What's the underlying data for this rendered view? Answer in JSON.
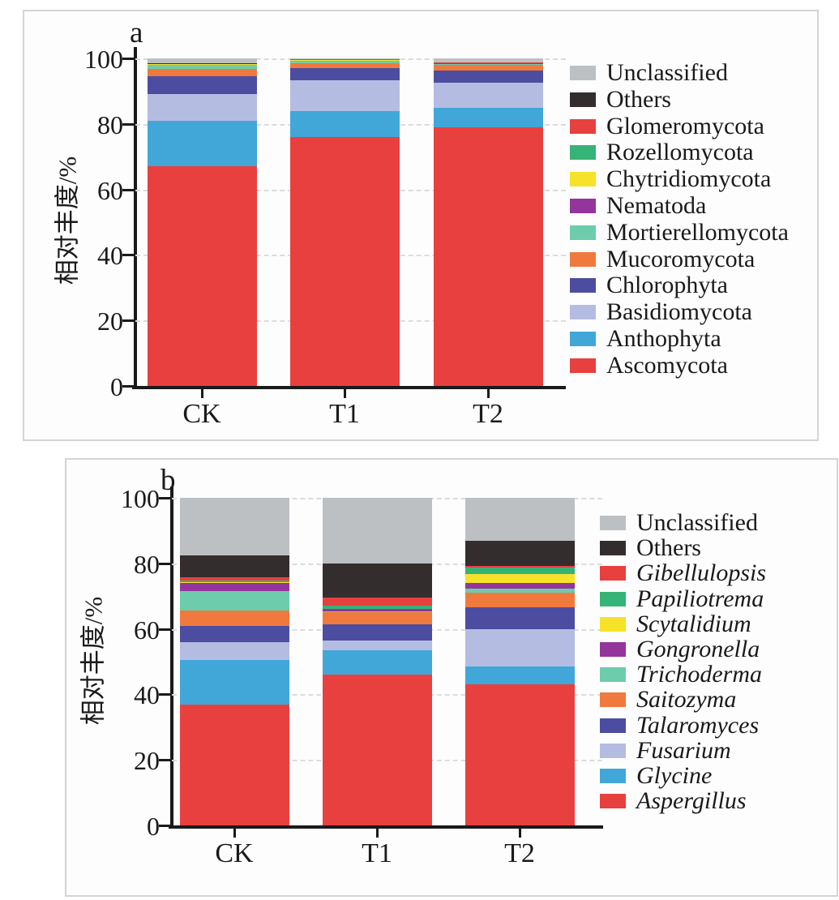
{
  "panels": {
    "a": {
      "label": "a",
      "y_axis_title": "相对丰度/%",
      "x_categories": [
        "CK",
        "T1",
        "T2"
      ],
      "y_tick_labels": [
        "0",
        "20",
        "40",
        "60",
        "80",
        "100"
      ]
    },
    "b": {
      "label": "b",
      "y_axis_title": "相对丰度/%",
      "x_categories": [
        "CK",
        "T1",
        "T2"
      ],
      "y_tick_labels": [
        "0",
        "20",
        "40",
        "60",
        "80",
        "100"
      ]
    }
  },
  "chart_data": [
    {
      "type": "bar",
      "stacked": true,
      "panel": "a",
      "title": "",
      "xlabel": "",
      "ylabel": "相对丰度/%",
      "ylim": [
        0,
        100
      ],
      "y_ticks": [
        0,
        20,
        40,
        60,
        80,
        100
      ],
      "grid": "dashed-horizontal",
      "legend_position": "right",
      "categories": [
        "CK",
        "T1",
        "T2"
      ],
      "legend_top_to_bottom": [
        "Unclassified",
        "Others",
        "Glomeromycota",
        "Rozellomycota",
        "Chytridiomycota",
        "Nematoda",
        "Mortierellomycota",
        "Mucoromycota",
        "Chlorophyta",
        "Basidiomycota",
        "Anthophyta",
        "Ascomycota"
      ],
      "series": [
        {
          "name": "Ascomycota",
          "color": "#e8403f",
          "italic": false,
          "values": [
            67.0,
            76.0,
            79.0
          ]
        },
        {
          "name": "Anthophyta",
          "color": "#41a7d8",
          "italic": false,
          "values": [
            14.0,
            8.0,
            5.8
          ]
        },
        {
          "name": "Basidiomycota",
          "color": "#b5bce2",
          "italic": false,
          "values": [
            8.0,
            9.3,
            7.9
          ]
        },
        {
          "name": "Chlorophyta",
          "color": "#4c4da0",
          "italic": false,
          "values": [
            5.5,
            3.7,
            3.6
          ]
        },
        {
          "name": "Mucoromycota",
          "color": "#f0793d",
          "italic": false,
          "values": [
            2.3,
            1.5,
            1.8
          ]
        },
        {
          "name": "Mortierellomycota",
          "color": "#6cccab",
          "italic": false,
          "values": [
            1.2,
            0.8,
            0.3
          ]
        },
        {
          "name": "Nematoda",
          "color": "#94359c",
          "italic": false,
          "values": [
            0.1,
            0.1,
            0.05
          ]
        },
        {
          "name": "Chytridiomycota",
          "color": "#f6e229",
          "italic": false,
          "values": [
            0.1,
            0.1,
            0.05
          ]
        },
        {
          "name": "Rozellomycota",
          "color": "#36b376",
          "italic": false,
          "values": [
            0.1,
            0.1,
            0.1
          ]
        },
        {
          "name": "Glomeromycota",
          "color": "#e8403f",
          "italic": false,
          "values": [
            0.1,
            0.1,
            0.1
          ]
        },
        {
          "name": "Others",
          "color": "#332d2e",
          "italic": false,
          "values": [
            0.1,
            0.1,
            0.1
          ]
        },
        {
          "name": "Unclassified",
          "color": "#bcc0c3",
          "italic": false,
          "values": [
            1.5,
            0.2,
            1.2
          ]
        }
      ]
    },
    {
      "type": "bar",
      "stacked": true,
      "panel": "b",
      "title": "",
      "xlabel": "",
      "ylabel": "相对丰度/%",
      "ylim": [
        0,
        100
      ],
      "y_ticks": [
        0,
        20,
        40,
        60,
        80,
        100
      ],
      "grid": "dashed-horizontal",
      "legend_position": "right",
      "categories": [
        "CK",
        "T1",
        "T2"
      ],
      "legend_top_to_bottom": [
        "Unclassified",
        "Others",
        "Gibellulopsis",
        "Papiliotrema",
        "Scytalidium",
        "Gongronella",
        "Trichoderma",
        "Saitozyma",
        "Talaromyces",
        "Fusarium",
        "Glycine",
        "Aspergillus"
      ],
      "series": [
        {
          "name": "Aspergillus",
          "color": "#e8403f",
          "italic": true,
          "values": [
            37.0,
            46.0,
            43.0
          ]
        },
        {
          "name": "Glycine",
          "color": "#41a7d8",
          "italic": true,
          "values": [
            13.5,
            7.5,
            5.5
          ]
        },
        {
          "name": "Fusarium",
          "color": "#b5bce2",
          "italic": true,
          "values": [
            5.5,
            3.0,
            11.5
          ]
        },
        {
          "name": "Talaromyces",
          "color": "#4c4da0",
          "italic": true,
          "values": [
            5.0,
            5.0,
            6.5
          ]
        },
        {
          "name": "Saitozyma",
          "color": "#f0793d",
          "italic": true,
          "values": [
            4.5,
            3.5,
            4.5
          ]
        },
        {
          "name": "Trichoderma",
          "color": "#6cccab",
          "italic": true,
          "values": [
            6.0,
            0.3,
            1.2
          ]
        },
        {
          "name": "Gongronella",
          "color": "#94359c",
          "italic": true,
          "values": [
            2.5,
            0.7,
            1.8
          ]
        },
        {
          "name": "Scytalidium",
          "color": "#f6e229",
          "italic": true,
          "values": [
            0.3,
            0.2,
            2.8
          ]
        },
        {
          "name": "Papiliotrema",
          "color": "#36b376",
          "italic": true,
          "values": [
            0.5,
            1.0,
            2.0
          ]
        },
        {
          "name": "Gibellulopsis",
          "color": "#e8403f",
          "italic": true,
          "values": [
            1.0,
            2.3,
            0.4
          ]
        },
        {
          "name": "Others",
          "color": "#332d2e",
          "italic": false,
          "values": [
            6.7,
            10.5,
            7.8
          ]
        },
        {
          "name": "Unclassified",
          "color": "#bcc0c3",
          "italic": false,
          "values": [
            17.5,
            20.0,
            13.0
          ]
        }
      ]
    }
  ]
}
